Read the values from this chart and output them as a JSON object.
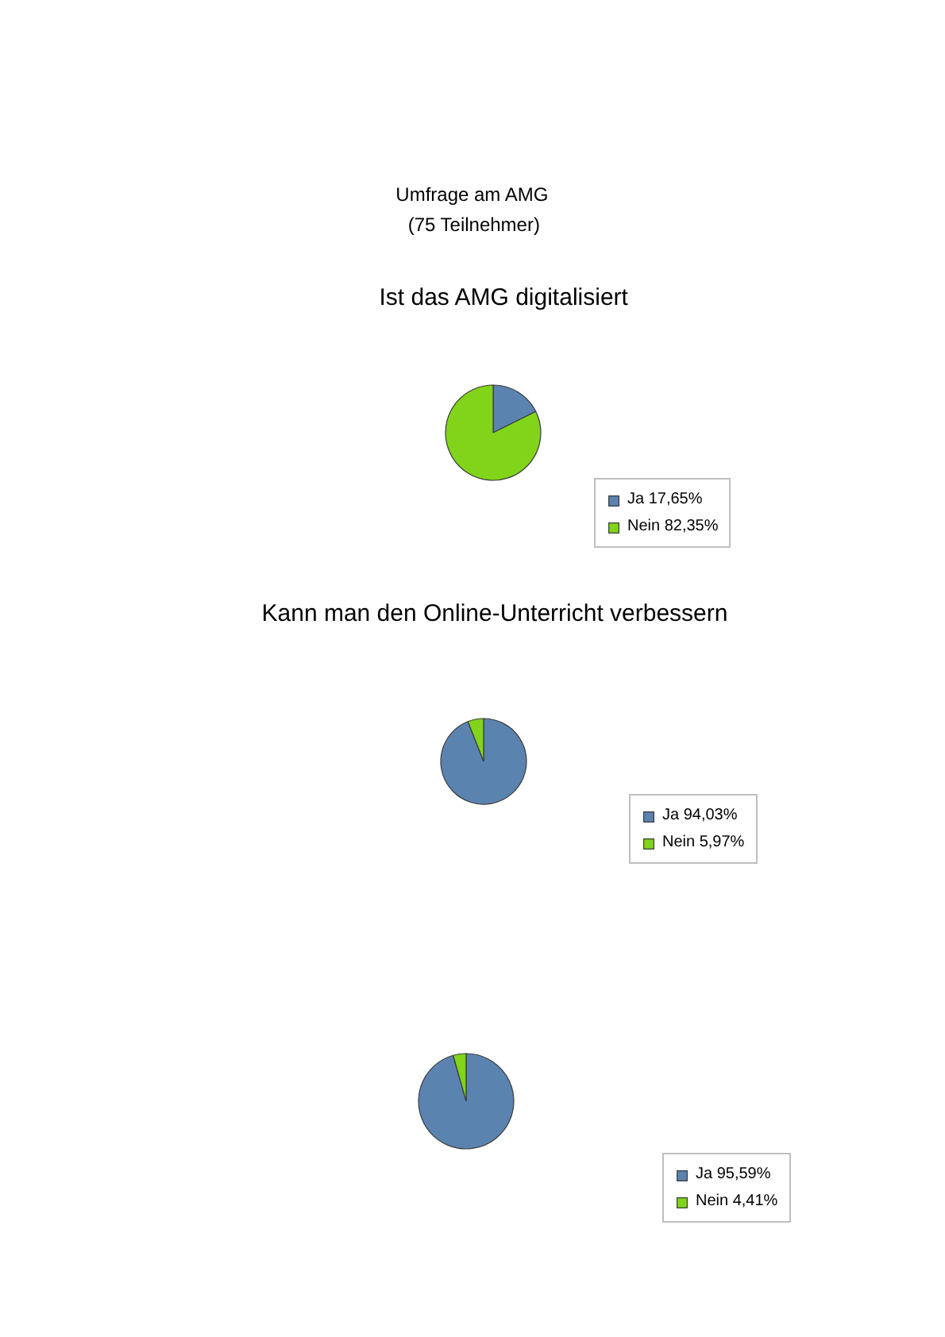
{
  "chart_data": [
    {
      "type": "pie",
      "title": "Ist das AMG digitalisiert",
      "annotations": [
        "Umfrage am AMG",
        "(75 Teilnehmer)"
      ],
      "categories": [
        "Ja",
        "Nein"
      ],
      "values": [
        17.65,
        82.35
      ],
      "value_labels": [
        "17,65%",
        "82,35%"
      ],
      "colors": [
        "#5b83b0",
        "#81d41a"
      ],
      "legend": "bottom right"
    },
    {
      "type": "pie",
      "title": "Kann man den Online-Unterricht verbessern",
      "categories": [
        "Ja",
        "Nein"
      ],
      "values": [
        94.03,
        5.97
      ],
      "value_labels": [
        "94,03%",
        "5,97%"
      ],
      "colors": [
        "#5b83b0",
        "#81d41a"
      ],
      "legend": "bottom right"
    },
    {
      "type": "pie",
      "categories": [
        "Ja",
        "Nein"
      ],
      "values": [
        95.59,
        4.41
      ],
      "value_labels": [
        "95,59%",
        "4,41%"
      ],
      "colors": [
        "#5b83b0",
        "#81d41a"
      ],
      "legend": "bottom right"
    }
  ]
}
